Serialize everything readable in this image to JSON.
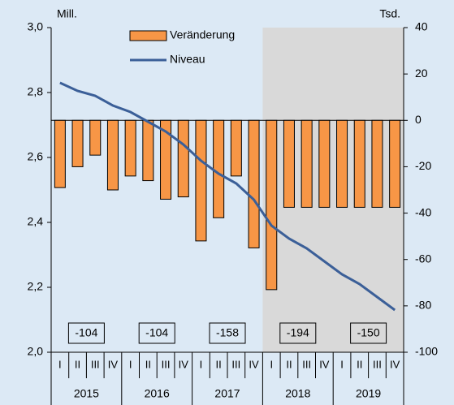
{
  "chart_data": {
    "type": "bar_line",
    "y_unit_label": "Mill.",
    "y2_unit_label": "Tsd.",
    "categories": [
      "I",
      "II",
      "III",
      "IV",
      "I",
      "II",
      "III",
      "IV",
      "I",
      "II",
      "III",
      "IV",
      "I",
      "II",
      "III",
      "IV",
      "I",
      "II",
      "III",
      "IV"
    ],
    "year_groups": [
      "2015",
      "2016",
      "2017",
      "2018",
      "2019"
    ],
    "series": [
      {
        "name": "Veränderung",
        "type": "bar",
        "axis": "y2",
        "color": "#f79646",
        "values": [
          -29,
          -20,
          -15,
          -30,
          -24,
          -26,
          -34,
          -33,
          -52,
          -42,
          -24,
          -55,
          -73,
          -37.5,
          -37.5,
          -37.5,
          -37.5,
          -37.5,
          -37.5,
          -37.5
        ]
      },
      {
        "name": "Niveau",
        "type": "line",
        "axis": "y",
        "color": "#3b5f98",
        "values": [
          2.83,
          2.805,
          2.79,
          2.76,
          2.74,
          2.71,
          2.68,
          2.64,
          2.59,
          2.55,
          2.52,
          2.47,
          2.39,
          2.35,
          2.32,
          2.28,
          2.24,
          2.21,
          2.17,
          2.13
        ]
      }
    ],
    "annotations": [
      "-104",
      "-104",
      "-158",
      "-194",
      "-150"
    ],
    "ylim": [
      2.0,
      3.0
    ],
    "yticks": [
      {
        "value": 2.0,
        "label": "2,0"
      },
      {
        "value": 2.2,
        "label": "2,2"
      },
      {
        "value": 2.4,
        "label": "2,4"
      },
      {
        "value": 2.6,
        "label": "2,6"
      },
      {
        "value": 2.8,
        "label": "2,8"
      },
      {
        "value": 3.0,
        "label": "3,0"
      }
    ],
    "y2lim": [
      -100,
      40
    ],
    "y2ticks": [
      -100,
      -80,
      -60,
      -40,
      -20,
      0,
      20,
      40
    ]
  }
}
